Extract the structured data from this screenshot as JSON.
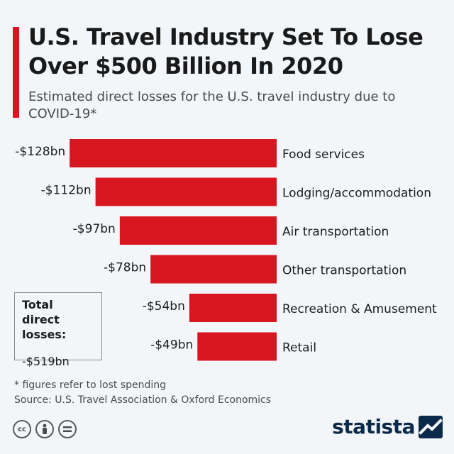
{
  "header": {
    "title": "U.S. Travel Industry Set To Lose Over $500 Billion In 2020",
    "subtitle": "Estimated direct losses for the U.S. travel industry due to COVID-19*"
  },
  "chart_data": {
    "type": "bar",
    "orientation": "horizontal",
    "title": "U.S. Travel Industry Set To Lose Over $500 Billion In 2020",
    "subtitle": "Estimated direct losses for the U.S. travel industry due to COVID-19*",
    "categories": [
      "Food services",
      "Lodging/accommodation",
      "Air transportation",
      "Other transportation",
      "Recreation & Amusement",
      "Retail"
    ],
    "values": [
      -128,
      -112,
      -97,
      -78,
      -54,
      -49
    ],
    "value_labels": [
      "-$128bn",
      "-$112bn",
      "-$97bn",
      "-$78bn",
      "-$54bn",
      "-$49bn"
    ],
    "unit": "billion USD",
    "xlim": [
      -128,
      0
    ],
    "xlabel": "",
    "ylabel": "",
    "grid": false,
    "bar_color": "#d8161f"
  },
  "total": {
    "label": "Total direct losses:",
    "value": "-$519bn"
  },
  "footnote": {
    "note": "* figures refer to lost spending",
    "source": "Source: U.S. Travel Association & Oxford Economics"
  },
  "license_icons": [
    "creative-commons-icon",
    "attribution-icon",
    "no-derivatives-icon"
  ],
  "brand": {
    "name": "statista",
    "color": "#0b2a4a"
  },
  "colors": {
    "accent": "#d8161f",
    "background": "#f3f6f9"
  }
}
